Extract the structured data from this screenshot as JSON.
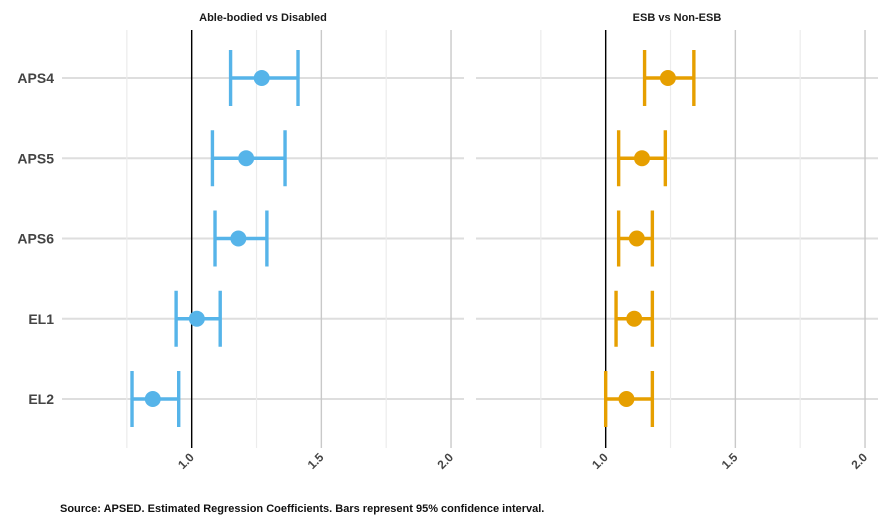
{
  "chart_data": {
    "type": "scatter",
    "subtype": "dot-and-whisker",
    "caption": "Source: APSED. Estimated Regression Coefficients. Bars represent 95% confidence interval.",
    "categories": [
      "APS4",
      "APS5",
      "APS6",
      "EL1",
      "EL2"
    ],
    "xlim": [
      0.5,
      2.05
    ],
    "x_ticks": [
      1.0,
      1.5,
      2.0
    ],
    "x_tick_labels": [
      "1.0",
      "1.5",
      "2.0"
    ],
    "reference_line": 1.0,
    "grid": true,
    "legend": "none",
    "panels": [
      {
        "title": "Able-bodied vs Disabled",
        "color": "#56B4E9",
        "points": [
          {
            "label": "APS4",
            "estimate": 1.27,
            "lower": 1.15,
            "upper": 1.41
          },
          {
            "label": "APS5",
            "estimate": 1.21,
            "lower": 1.08,
            "upper": 1.36
          },
          {
            "label": "APS6",
            "estimate": 1.18,
            "lower": 1.09,
            "upper": 1.29
          },
          {
            "label": "EL1",
            "estimate": 1.02,
            "lower": 0.94,
            "upper": 1.11
          },
          {
            "label": "EL2",
            "estimate": 0.85,
            "lower": 0.77,
            "upper": 0.95
          }
        ]
      },
      {
        "title": "ESB vs Non-ESB",
        "color": "#E69F00",
        "points": [
          {
            "label": "APS4",
            "estimate": 1.24,
            "lower": 1.15,
            "upper": 1.34
          },
          {
            "label": "APS5",
            "estimate": 1.14,
            "lower": 1.05,
            "upper": 1.23
          },
          {
            "label": "APS6",
            "estimate": 1.12,
            "lower": 1.05,
            "upper": 1.18
          },
          {
            "label": "EL1",
            "estimate": 1.11,
            "lower": 1.04,
            "upper": 1.18
          },
          {
            "label": "EL2",
            "estimate": 1.08,
            "lower": 1.0,
            "upper": 1.18
          }
        ]
      }
    ]
  }
}
